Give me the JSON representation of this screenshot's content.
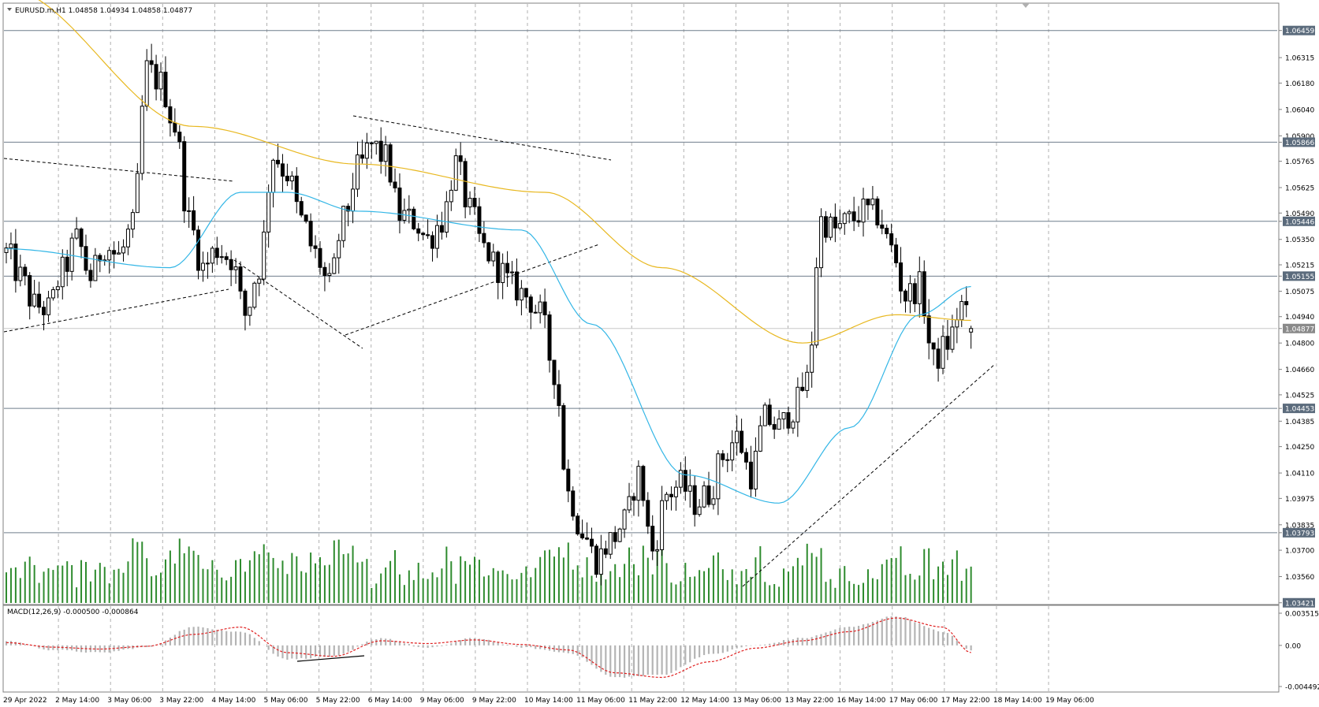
{
  "chart_data": {
    "type": "candlestick",
    "title": "EURUSD.m,H1  1.04858 1.04934 1.04858 1.04877",
    "symbol": "EURUSD.m",
    "timeframe": "H1",
    "ohlc_last": {
      "open": 1.04858,
      "high": 1.04934,
      "low": 1.04858,
      "close": 1.04877
    },
    "price_axis": {
      "range": [
        1.0342,
        1.066
      ],
      "ticks": [
        "1.06459",
        "1.06315",
        "1.06180",
        "1.06040",
        "1.05900",
        "1.05866",
        "1.05765",
        "1.05625",
        "1.05490",
        "1.05446",
        "1.05350",
        "1.05215",
        "1.05155",
        "1.05075",
        "1.04940",
        "1.04877",
        "1.04800",
        "1.04660",
        "1.04525",
        "1.04453",
        "1.04385",
        "1.04250",
        "1.04110",
        "1.03975",
        "1.03835",
        "1.03793",
        "1.03700",
        "1.03560",
        "1.03421"
      ],
      "highlighted_levels": [
        "1.06459",
        "1.05866",
        "1.05446",
        "1.05155",
        "1.04877",
        "1.04453",
        "1.03793",
        "1.03421"
      ]
    },
    "horizontal_levels": [
      1.06459,
      1.05866,
      1.05446,
      1.05155,
      1.04453,
      1.03793
    ],
    "current_price": 1.04877,
    "time_axis": [
      "29 Apr 2022",
      "2 May 14:00",
      "3 May 06:00",
      "3 May 22:00",
      "4 May 14:00",
      "5 May 06:00",
      "5 May 22:00",
      "6 May 14:00",
      "9 May 06:00",
      "9 May 22:00",
      "10 May 14:00",
      "11 May 06:00",
      "11 May 22:00",
      "12 May 14:00",
      "13 May 06:00",
      "13 May 22:00",
      "16 May 14:00",
      "17 May 06:00",
      "17 May 22:00",
      "18 May 14:00",
      "19 May 06:00"
    ],
    "price_path": [
      [
        0,
        1.0528
      ],
      [
        3,
        1.0515
      ],
      [
        6,
        1.05
      ],
      [
        9,
        1.0498
      ],
      [
        12,
        1.0518
      ],
      [
        15,
        1.0535
      ],
      [
        18,
        1.0515
      ],
      [
        21,
        1.0532
      ],
      [
        24,
        1.0526
      ],
      [
        27,
        1.0542
      ],
      [
        30,
        1.0625
      ],
      [
        33,
        1.0618
      ],
      [
        36,
        1.0595
      ],
      [
        39,
        1.0545
      ],
      [
        42,
        1.052
      ],
      [
        45,
        1.053
      ],
      [
        48,
        1.0525
      ],
      [
        51,
        1.0495
      ],
      [
        54,
        1.052
      ],
      [
        57,
        1.058
      ],
      [
        60,
        1.057
      ],
      [
        63,
        1.0545
      ],
      [
        66,
        1.0527
      ],
      [
        69,
        1.051
      ],
      [
        72,
        1.0545
      ],
      [
        75,
        1.0572
      ],
      [
        78,
        1.0585
      ],
      [
        81,
        1.0578
      ],
      [
        84,
        1.0548
      ],
      [
        87,
        1.0545
      ],
      [
        90,
        1.0535
      ],
      [
        93,
        1.0545
      ],
      [
        96,
        1.0575
      ],
      [
        99,
        1.055
      ],
      [
        102,
        1.053
      ],
      [
        105,
        1.052
      ],
      [
        108,
        1.051
      ],
      [
        111,
        1.0505
      ],
      [
        114,
        1.0495
      ],
      [
        117,
        1.0465
      ],
      [
        120,
        1.04
      ],
      [
        123,
        1.038
      ],
      [
        126,
        1.0365
      ],
      [
        129,
        1.0375
      ],
      [
        132,
        1.0385
      ],
      [
        135,
        1.041
      ],
      [
        138,
        1.037
      ],
      [
        141,
        1.04
      ],
      [
        144,
        1.0405
      ],
      [
        147,
        1.0395
      ],
      [
        150,
        1.04
      ],
      [
        153,
        1.042
      ],
      [
        156,
        1.043
      ],
      [
        159,
        1.041
      ],
      [
        162,
        1.044
      ],
      [
        165,
        1.0435
      ],
      [
        168,
        1.0445
      ],
      [
        171,
        1.046
      ],
      [
        174,
        1.0545
      ],
      [
        177,
        1.054
      ],
      [
        180,
        1.0545
      ],
      [
        183,
        1.055
      ],
      [
        186,
        1.0548
      ],
      [
        189,
        1.053
      ],
      [
        192,
        1.0505
      ],
      [
        195,
        1.051
      ],
      [
        198,
        1.047
      ],
      [
        201,
        1.048
      ],
      [
        204,
        1.05
      ],
      [
        206,
        1.0488
      ]
    ],
    "moving_averages": [
      {
        "color": "#e8b820",
        "points": [
          [
            0,
            1.0668
          ],
          [
            40,
            1.0595
          ],
          [
            75,
            1.0575
          ],
          [
            115,
            1.056
          ],
          [
            140,
            1.052
          ],
          [
            170,
            1.048
          ],
          [
            190,
            1.0495
          ],
          [
            206,
            1.0492
          ]
        ]
      },
      {
        "color": "#33b6e6",
        "points": [
          [
            0,
            1.053
          ],
          [
            35,
            1.052
          ],
          [
            50,
            1.056
          ],
          [
            60,
            1.056
          ],
          [
            75,
            1.055
          ],
          [
            110,
            1.054
          ],
          [
            125,
            1.049
          ],
          [
            145,
            1.041
          ],
          [
            165,
            1.0395
          ],
          [
            180,
            1.0435
          ],
          [
            195,
            1.0495
          ],
          [
            206,
            1.051
          ]
        ]
      }
    ],
    "macd": {
      "label": "MACD(12,26,9) -0.000500 -0.000864",
      "ticks": [
        "0.003515",
        "0.00",
        "-0.004492"
      ],
      "range": [
        -0.004492,
        0.003515
      ],
      "histogram_path": [
        [
          0,
          0.0005
        ],
        [
          10,
          -0.0005
        ],
        [
          20,
          -0.0008
        ],
        [
          30,
          -0.0002
        ],
        [
          40,
          0.002
        ],
        [
          50,
          0.0015
        ],
        [
          60,
          -0.0015
        ],
        [
          70,
          -0.0012
        ],
        [
          80,
          0.0008
        ],
        [
          90,
          -0.0003
        ],
        [
          100,
          0.0008
        ],
        [
          110,
          -0.0002
        ],
        [
          120,
          -0.0008
        ],
        [
          130,
          -0.0035
        ],
        [
          140,
          -0.0032
        ],
        [
          150,
          -0.001
        ],
        [
          160,
          0.0
        ],
        [
          170,
          0.0008
        ],
        [
          180,
          0.002
        ],
        [
          190,
          0.0032
        ],
        [
          200,
          0.0015
        ],
        [
          206,
          -0.0005
        ]
      ],
      "signal_path": [
        [
          0,
          0.0003
        ],
        [
          10,
          -0.0002
        ],
        [
          20,
          -0.0004
        ],
        [
          30,
          -0.0001
        ],
        [
          40,
          0.0012
        ],
        [
          50,
          0.002
        ],
        [
          60,
          -0.0008
        ],
        [
          70,
          -0.0012
        ],
        [
          80,
          0.0005
        ],
        [
          90,
          0.0002
        ],
        [
          100,
          0.0006
        ],
        [
          110,
          0.0001
        ],
        [
          120,
          -0.0005
        ],
        [
          130,
          -0.003
        ],
        [
          140,
          -0.0035
        ],
        [
          150,
          -0.0018
        ],
        [
          160,
          -0.0003
        ],
        [
          170,
          0.0005
        ],
        [
          180,
          0.0015
        ],
        [
          190,
          0.003
        ],
        [
          200,
          0.002
        ],
        [
          206,
          -0.0008
        ]
      ]
    },
    "volume_max": 100,
    "grid": true
  }
}
